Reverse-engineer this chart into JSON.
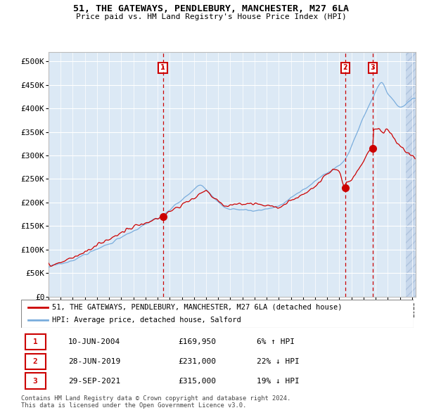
{
  "title1": "51, THE GATEWAYS, PENDLEBURY, MANCHESTER, M27 6LA",
  "title2": "Price paid vs. HM Land Registry's House Price Index (HPI)",
  "legend_label_red": "51, THE GATEWAYS, PENDLEBURY, MANCHESTER, M27 6LA (detached house)",
  "legend_label_blue": "HPI: Average price, detached house, Salford",
  "transactions": [
    {
      "num": 1,
      "date": "10-JUN-2004",
      "price": 169950,
      "pct": "6%",
      "dir": "↑"
    },
    {
      "num": 2,
      "date": "28-JUN-2019",
      "price": 231000,
      "pct": "22%",
      "dir": "↓"
    },
    {
      "num": 3,
      "date": "29-SEP-2021",
      "price": 315000,
      "pct": "19%",
      "dir": "↓"
    }
  ],
  "transaction_dates_decimal": [
    2004.44,
    2019.49,
    2021.75
  ],
  "transaction_prices": [
    169950,
    231000,
    315000
  ],
  "footer": "Contains HM Land Registry data © Crown copyright and database right 2024.\nThis data is licensed under the Open Government Licence v3.0.",
  "ytick_values": [
    0,
    50000,
    100000,
    150000,
    200000,
    250000,
    300000,
    350000,
    400000,
    450000,
    500000
  ],
  "xlim": [
    1995.0,
    2025.3
  ],
  "ylim": [
    0,
    520000
  ],
  "background_color": "#dce9f5",
  "hatch_color": "#c8d8ec",
  "grid_color": "#ffffff",
  "red_line_color": "#cc0000",
  "blue_line_color": "#7aaddd",
  "dot_color": "#cc0000",
  "vline_color": "#cc0000",
  "box_color": "#cc0000"
}
